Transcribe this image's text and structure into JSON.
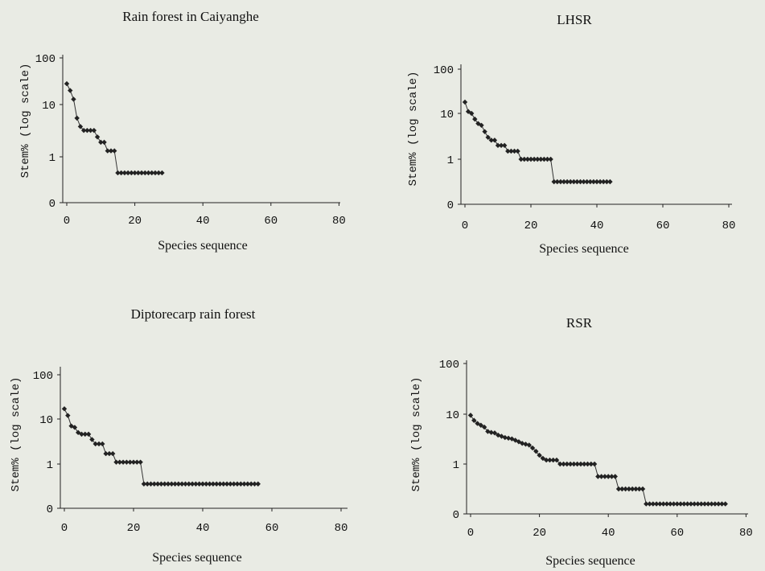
{
  "chart_data": [
    {
      "type": "scatter",
      "title": "Rain forest in Caiyanghe",
      "xlabel": "Species sequence",
      "ylabel": "Stem% (log scale)",
      "xlim": [
        0,
        80
      ],
      "xticks": [
        "0",
        "20",
        "40",
        "60",
        "80"
      ],
      "yticks": [
        "0",
        "1",
        "10",
        "100"
      ],
      "series": [
        {
          "values": [
            28,
            20,
            13,
            5.5,
            3.8,
            3.2,
            3.2,
            3.2,
            3.2,
            2.4,
            1.9,
            1.9,
            1.3,
            1.3,
            1.3,
            0.65,
            0.65,
            0.65,
            0.65,
            0.65,
            0.65,
            0.65,
            0.65,
            0.65,
            0.65,
            0.65,
            0.65,
            0.65,
            0.65
          ]
        }
      ]
    },
    {
      "type": "scatter",
      "title": "LHSR",
      "xlabel": "Species sequence",
      "ylabel": "Stem% (log scale)",
      "xlim": [
        0,
        80
      ],
      "xticks": [
        "0",
        "20",
        "40",
        "60",
        "80"
      ],
      "yticks": [
        "0",
        "1",
        "10",
        "100"
      ],
      "series": [
        {
          "values": [
            18,
            11,
            10,
            7.5,
            6,
            5.5,
            4,
            3,
            2.6,
            2.6,
            2,
            2,
            2,
            1.5,
            1.5,
            1.5,
            1.5,
            1,
            1,
            1,
            1,
            1,
            1,
            1,
            1,
            1,
            1,
            0.5,
            0.5,
            0.5,
            0.5,
            0.5,
            0.5,
            0.5,
            0.5,
            0.5,
            0.5,
            0.5,
            0.5,
            0.5,
            0.5,
            0.5,
            0.5,
            0.5,
            0.5
          ]
        }
      ]
    },
    {
      "type": "scatter",
      "title": "Diptorecarp rain forest",
      "xlabel": "Species sequence",
      "ylabel": "Stem% (log scale)",
      "xlim": [
        0,
        80
      ],
      "xticks": [
        "0",
        "20",
        "40",
        "60",
        "80"
      ],
      "yticks": [
        "0",
        "1",
        "10",
        "100"
      ],
      "series": [
        {
          "values": [
            17,
            12,
            7,
            6.5,
            5,
            4.6,
            4.6,
            4.6,
            3.5,
            2.8,
            2.8,
            2.8,
            1.7,
            1.7,
            1.7,
            1.1,
            1.1,
            1.1,
            1.1,
            1.1,
            1.1,
            1.1,
            1.1,
            0.55,
            0.55,
            0.55,
            0.55,
            0.55,
            0.55,
            0.55,
            0.55,
            0.55,
            0.55,
            0.55,
            0.55,
            0.55,
            0.55,
            0.55,
            0.55,
            0.55,
            0.55,
            0.55,
            0.55,
            0.55,
            0.55,
            0.55,
            0.55,
            0.55,
            0.55,
            0.55,
            0.55,
            0.55,
            0.55,
            0.55,
            0.55,
            0.55,
            0.55
          ]
        }
      ]
    },
    {
      "type": "scatter",
      "title": "RSR",
      "xlabel": "Species sequence",
      "ylabel": "Stem% (log scale)",
      "xlim": [
        0,
        80
      ],
      "xticks": [
        "0",
        "20",
        "40",
        "60",
        "80"
      ],
      "yticks": [
        "0",
        "1",
        "10",
        "100"
      ],
      "series": [
        {
          "values": [
            9.5,
            7.5,
            6.5,
            6,
            5.5,
            4.5,
            4.3,
            4.2,
            3.8,
            3.6,
            3.4,
            3.3,
            3.2,
            3,
            2.8,
            2.6,
            2.5,
            2.4,
            2.1,
            1.8,
            1.5,
            1.3,
            1.2,
            1.2,
            1.2,
            1.2,
            1.0,
            1.0,
            1.0,
            1.0,
            1.0,
            1.0,
            1.0,
            1.0,
            1.0,
            1.0,
            1.0,
            0.75,
            0.75,
            0.75,
            0.75,
            0.75,
            0.75,
            0.5,
            0.5,
            0.5,
            0.5,
            0.5,
            0.5,
            0.5,
            0.5,
            0.2,
            0.2,
            0.2,
            0.2,
            0.2,
            0.2,
            0.2,
            0.2,
            0.2,
            0.2,
            0.2,
            0.2,
            0.2,
            0.2,
            0.2,
            0.2,
            0.2,
            0.2,
            0.2,
            0.2,
            0.2,
            0.2,
            0.2,
            0.2
          ]
        }
      ]
    }
  ]
}
